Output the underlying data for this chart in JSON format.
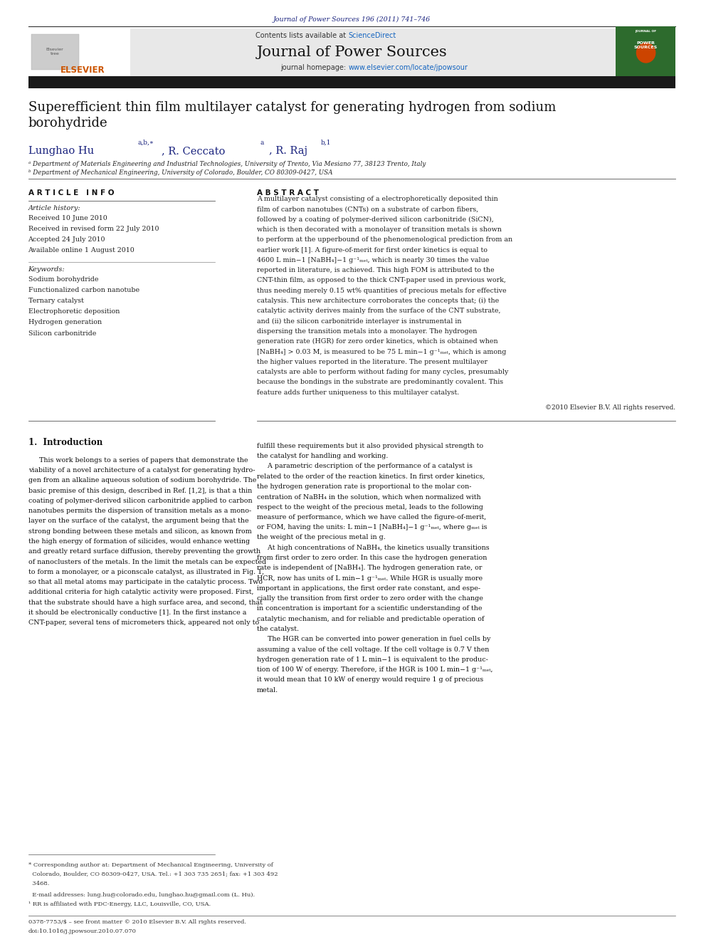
{
  "page_width": 9.92,
  "page_height": 13.23,
  "bg_color": "#ffffff",
  "header_journal_text": "Journal of Power Sources 196 (2011) 741–746",
  "header_journal_color": "#1a237e",
  "header_sciencedirect_color": "#1565c0",
  "header_journal_name": "Journal of Power Sources",
  "header_homepage_url": "www.elsevier.com/locate/jpowsour",
  "header_homepage_url_color": "#1565c0",
  "header_bg_color": "#e8e8e8",
  "dark_bar_color": "#1a1a1a",
  "title_text": "Superefficient thin film multilayer catalyst for generating hydrogen from sodium\nborohydride",
  "authors_color": "#1a237e",
  "affil_a": "ᵃ Department of Materials Engineering and Industrial Technologies, University of Trento, Via Mesiano 77, 38123 Trento, Italy",
  "affil_b": "ᵇ Department of Mechanical Engineering, University of Colorado, Boulder, CO 80309-0427, USA",
  "section_article_info": "A R T I C L E   I N F O",
  "section_abstract": "A B S T R A C T",
  "article_history_title": "Article history:",
  "article_history": "Received 10 June 2010\nReceived in revised form 22 July 2010\nAccepted 24 July 2010\nAvailable online 1 August 2010",
  "keywords_title": "Keywords:",
  "keywords": "Sodium borohydride\nFunctionalized carbon nanotube\nTernary catalyst\nElectrophoretic deposition\nHydrogen generation\nSilicon carbonitride",
  "abstract_text": "A multilayer catalyst consisting of a electrophoretically deposited thin film of carbon nanotubes (CNTs) on a substrate of carbon fibers, followed by a coating of polymer-derived silicon carbonitride (SiCN), which is then decorated with a monolayer of transition metals is shown to perform at the upperbound of the phenomenological prediction from an earlier work [1]. A figure-of-merit for first order kinetics is equal to 4600 L min−1 [NaBH₄]−1 g⁻¹ₘₑₜ, which is nearly 30 times the value reported in literature, is achieved. This high FOM is attributed to the CNT-thin film, as opposed to the thick CNT-paper used in previous work, thus needing merely 0.15 wt% quantities of precious metals for effective catalysis. This new architecture corroborates the concepts that; (i) the catalytic activity derives mainly from the surface of the CNT substrate, and (ii) the silicon carbonitride interlayer is instrumental in dispersing the transition metals into a monolayer. The hydrogen generation rate (HGR) for zero order kinetics, which is obtained when [NaBH₄] > 0.03 M, is measured to be 75 L min−1 g⁻¹ₘₑₜ, which is among the higher values reported in the literature. The present multilayer catalysts are able to perform without fading for many cycles, presumably because the bondings in the substrate are predominantly covalent. This feature adds further uniqueness to this multilayer catalyst.",
  "copyright_text": "©2010 Elsevier B.V. All rights reserved.",
  "section1_title": "1.  Introduction",
  "section1_col1_lines": [
    "     This work belongs to a series of papers that demonstrate the",
    "viability of a novel architecture of a catalyst for generating hydro-",
    "gen from an alkaline aqueous solution of sodium borohydride. The",
    "basic premise of this design, described in Ref. [1,2], is that a thin",
    "coating of polymer-derived silicon carbonitride applied to carbon",
    "nanotubes permits the dispersion of transition metals as a mono-",
    "layer on the surface of the catalyst, the argument being that the",
    "strong bonding between these metals and silicon, as known from",
    "the high energy of formation of silicides, would enhance wetting",
    "and greatly retard surface diffusion, thereby preventing the growth",
    "of nanoclusters of the metals. In the limit the metals can be expected",
    "to form a monolayer, or a piconscale catalyst, as illustrated in Fig. 1,",
    "so that all metal atoms may participate in the catalytic process. Two",
    "additional criteria for high catalytic activity were proposed. First,",
    "that the substrate should have a high surface area, and second, that",
    "it should be electronically conductive [1]. In the first instance a",
    "CNT-paper, several tens of micrometers thick, appeared not only to"
  ],
  "section1_col2_lines": [
    "fulfill these requirements but it also provided physical strength to",
    "the catalyst for handling and working.",
    "     A parametric description of the performance of a catalyst is",
    "related to the order of the reaction kinetics. In first order kinetics,",
    "the hydrogen generation rate is proportional to the molar con-",
    "centration of NaBH₄ in the solution, which when normalized with",
    "respect to the weight of the precious metal, leads to the following",
    "measure of performance, which we have called the figure-of-merit,",
    "or FOM, having the units: L min−1 [NaBH₄]−1 g⁻¹ₘₑₜ, where gₘₑₜ is",
    "the weight of the precious metal in g.",
    "     At high concentrations of NaBH₄, the kinetics usually transitions",
    "from first order to zero order. In this case the hydrogen generation",
    "rate is independent of [NaBH₄]. The hydrogen generation rate, or",
    "HCR, now has units of L min−1 g⁻¹ₘₑₜ. While HGR is usually more",
    "important in applications, the first order rate constant, and espe-",
    "cially the transition from first order to zero order with the change",
    "in concentration is important for a scientific understanding of the",
    "catalytic mechanism, and for reliable and predictable operation of",
    "the catalyst.",
    "     The HGR can be converted into power generation in fuel cells by",
    "assuming a value of the cell voltage. If the cell voltage is 0.7 V then",
    "hydrogen generation rate of 1 L min−1 is equivalent to the produc-",
    "tion of 100 W of energy. Therefore, if the HGR is 100 L min−1 g⁻¹ₘₑₜ,",
    "it would mean that 10 kW of energy would require 1 g of precious",
    "metal."
  ],
  "footer_text": "0378-7753/$ – see front matter © 2010 Elsevier B.V. All rights reserved.\ndoi:10.1016/j.jpowsour.2010.07.070",
  "footnote1": "* Corresponding author at: Department of Mechanical Engineering, University of",
  "footnote1b": "  Colorado, Boulder, CO 80309-0427, USA. Tel.: +1 303 735 2651; fax: +1 303 492",
  "footnote1c": "  3468.",
  "footnote1a": "  E-mail addresses: lung.hu@colorado.edu, lunghao.hu@gmail.com (L. Hu).",
  "footnote2": "¹ RR is affiliated with PDC-Energy, LLC, Louisville, CO, USA."
}
